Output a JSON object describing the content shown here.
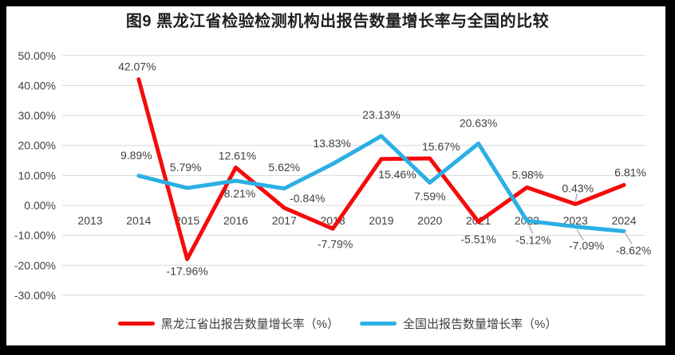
{
  "frame": {
    "border_color": "#000000",
    "canvas_color": "#ffffff"
  },
  "chart_data": {
    "type": "line",
    "title": "图9 黑龙江省检验检测机构出报告数量增长率与全国的比较",
    "xlabel": "",
    "ylabel": "",
    "categories": [
      "2013",
      "2014",
      "2015",
      "2016",
      "2017",
      "2018",
      "2019",
      "2020",
      "2021",
      "2022",
      "2023",
      "2024"
    ],
    "ylim": [
      -30,
      50
    ],
    "grid": true,
    "legend_position": "bottom",
    "colors": {
      "grid": "#d9d9d9",
      "axis_text": "#404040",
      "data_label_text": "#404040",
      "leader_line": "#a6a6a6",
      "title_text": "#1f1f1f"
    },
    "yticks": [
      {
        "value": 50,
        "label": "50.00%"
      },
      {
        "value": 40,
        "label": "40.00%"
      },
      {
        "value": 30,
        "label": "30.00%"
      },
      {
        "value": 20,
        "label": "20.00%"
      },
      {
        "value": 10,
        "label": "10.00%"
      },
      {
        "value": 0,
        "label": "0.00%"
      },
      {
        "value": -10,
        "label": "-10.00%"
      },
      {
        "value": -20,
        "label": "-20.00%"
      },
      {
        "value": -30,
        "label": "-30.00%"
      }
    ],
    "series": [
      {
        "name": "黑龙江省出报告数量增长率（%）",
        "color": "#f40b0b",
        "values": [
          null,
          42.07,
          -17.96,
          12.61,
          -0.84,
          -7.79,
          15.46,
          15.67,
          -5.51,
          5.98,
          0.43,
          6.81
        ],
        "point_labels": [
          null,
          {
            "text": "42.07%",
            "dx": -2,
            "dy": -16
          },
          {
            "text": "-17.96%",
            "dx": 0,
            "dy": 15
          },
          {
            "text": "12.61%",
            "dx": 2,
            "dy": -15
          },
          {
            "text": "-0.84%",
            "dx": 29,
            "dy": -12
          },
          {
            "text": "-7.79%",
            "dx": 3,
            "dy": 19
          },
          {
            "text": "15.46%",
            "dx": 20,
            "dy": 19
          },
          {
            "text": "15.67%",
            "dx": 14,
            "dy": -15
          },
          {
            "text": "-5.51%",
            "dx": 0,
            "dy": 22
          },
          {
            "text": "5.98%",
            "dx": 1,
            "dy": -16
          },
          {
            "text": "0.43%",
            "dx": 3,
            "dy": -20,
            "leader": [
              0,
              -3,
              2,
              -13
            ]
          },
          {
            "text": "6.81%",
            "dx": 8,
            "dy": -16
          }
        ]
      },
      {
        "name": "全国出报告数量增长率（%）",
        "color": "#2bafe4",
        "values": [
          null,
          9.89,
          5.79,
          8.21,
          5.62,
          13.83,
          23.13,
          7.59,
          20.63,
          -5.12,
          -7.09,
          -8.62
        ],
        "point_labels": [
          null,
          {
            "text": "9.89%",
            "dx": -3,
            "dy": -26
          },
          {
            "text": "5.79%",
            "dx": -2,
            "dy": -26
          },
          {
            "text": "8.21%",
            "dx": 5,
            "dy": 16
          },
          {
            "text": "5.62%",
            "dx": 0,
            "dy": -27
          },
          {
            "text": "13.83%",
            "dx": -1,
            "dy": -26
          },
          {
            "text": "23.13%",
            "dx": 0,
            "dy": -27
          },
          {
            "text": "7.59%",
            "dx": 0,
            "dy": 17
          },
          {
            "text": "20.63%",
            "dx": 0,
            "dy": -26
          },
          {
            "text": "-5.12%",
            "dx": 8,
            "dy": 24,
            "leader": [
              2,
              4,
              7,
              16
            ]
          },
          {
            "text": "-7.09%",
            "dx": 14,
            "dy": 24,
            "leader": [
              2,
              4,
              10,
              17
            ]
          },
          {
            "text": "-8.62%",
            "dx": 12,
            "dy": 24,
            "leader": [
              2,
              3,
              10,
              16
            ]
          }
        ]
      }
    ]
  }
}
